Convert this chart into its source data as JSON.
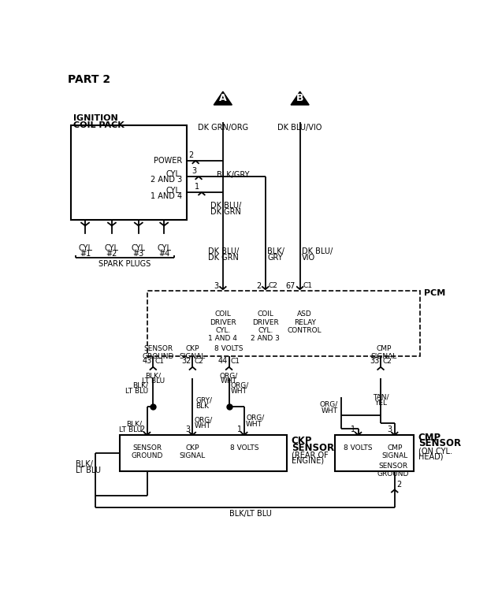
{
  "bg_color": "#ffffff",
  "title": "PART 2",
  "coil_label1": "IGNITION",
  "coil_label2": "COIL PACK",
  "conn_A_label": "A",
  "conn_B_label": "B",
  "conn_A_wire": "DK GRN/ORG",
  "conn_B_wire": "DK BLU/VIO",
  "power_label": "POWER",
  "cyl23_label1": "CYL.",
  "cyl23_label2": "2 AND 3",
  "cyl14_label1": "CYL.",
  "cyl14_label2": "1 AND 4",
  "wire_blkgry": "BLK/GRY",
  "wire_dkblu_dkgrn": "DK BLU/\nDK GRN",
  "wire_dkblu_vio": "DK BLU/\nVIO",
  "wire_blk_gry": "BLK/\nGRY",
  "pcm_label": "PCM",
  "coil_drv1": "COIL\nDRIVER\nCYL.\n1 AND 4",
  "coil_drv2": "COIL\nDRIVER\nCYL.\n2 AND 3",
  "asd_label": "ASD\nRELAY\nCONTROL",
  "sensor_gnd": "SENSOR\nGROUND",
  "ckp_sig": "CKP\nSIGNAL",
  "eight_v": "8 VOLTS",
  "cmp_sig": "CMP\nSIGNAL",
  "blk_ltblu": "BLK/\nLT BLU",
  "grybk": "GRY/\nBLK",
  "org_wht": "ORG/\nWHT",
  "tan_yel": "TAN/\nYEL",
  "ckp_sensor": "CKP\nSENSOR",
  "ckp_rear": "(REAR OF\nENGINE)",
  "cmp_sensor": "CMP\nSENSOR",
  "cmp_oncyl": "(ON CYL.\nHEAD)",
  "spark_plugs": "SPARK PLUGS",
  "blk_ltblu_wire": "BLK/LT BLU",
  "blkltblu_left": "BLK/\nLT BLU",
  "sp_labels": [
    "CYL\n#1",
    "CYL\n#2",
    "CYL\n#3",
    "CYL\n#4"
  ]
}
